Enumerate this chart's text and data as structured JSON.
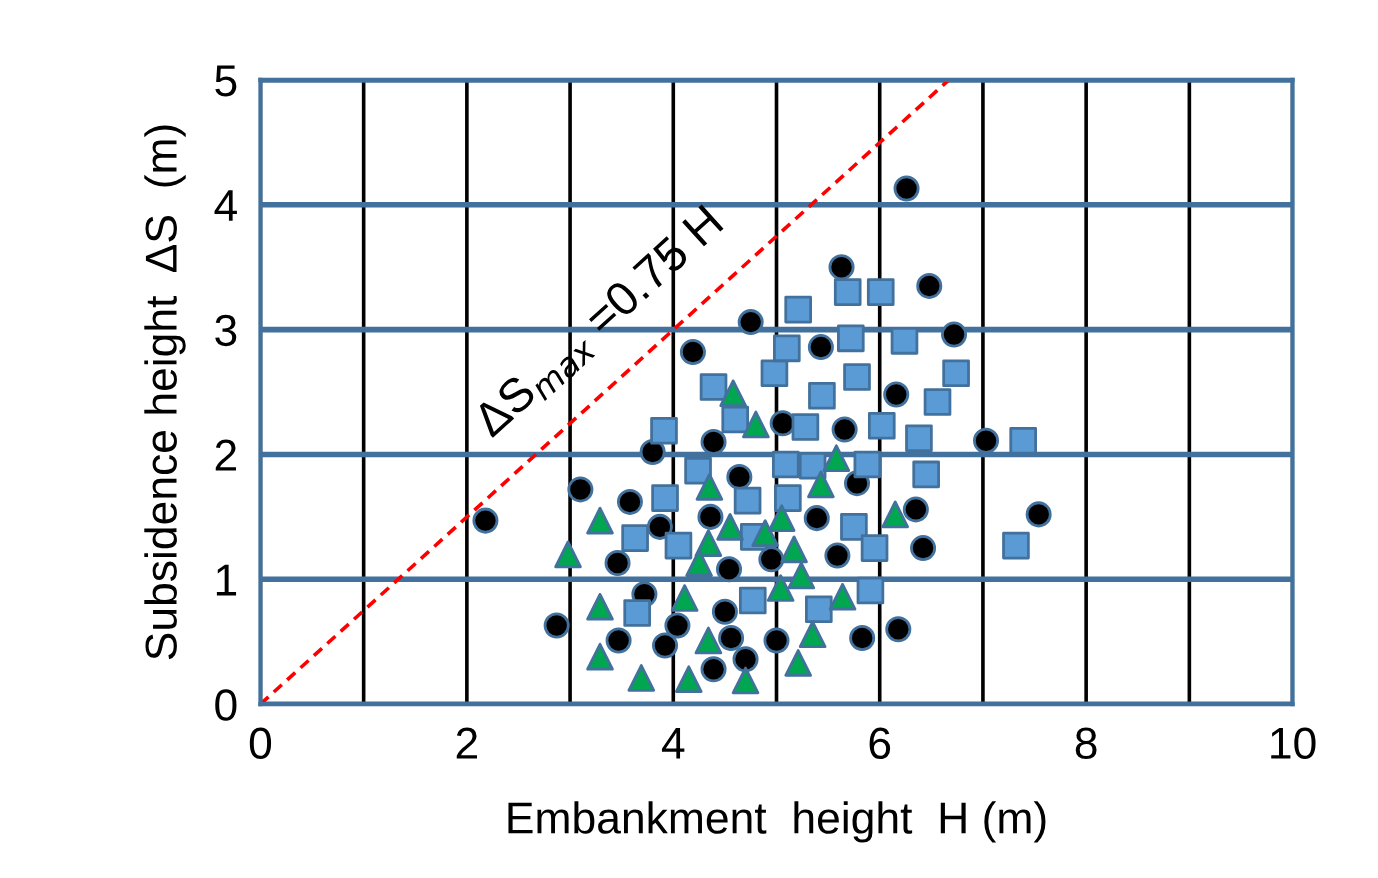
{
  "chart_data": {
    "type": "scatter",
    "xlabel": "Embankment  height  H (m)",
    "ylabel": "Subsidence height  ΔS  (m)",
    "xlim": [
      0,
      10
    ],
    "ylim": [
      0,
      5
    ],
    "xticks": [
      0,
      {
        "value": 1,
        "label": null
      },
      2,
      {
        "value": 3,
        "label": null
      },
      4,
      {
        "value": 5,
        "label": null
      },
      6,
      {
        "value": 7,
        "label": null
      },
      8,
      {
        "value": 9,
        "label": null
      },
      10
    ],
    "yticks": [
      0,
      1,
      2,
      3,
      4,
      5
    ],
    "grid": true,
    "annotations": [
      "ΔS$_{max}$ =0.75 H"
    ],
    "series": [
      {
        "type": "line",
        "color": "#ff0000",
        "line_style": "dashed",
        "marker": "none",
        "x": [
          0,
          6.67
        ],
        "values": [
          0,
          5
        ]
      },
      {
        "color": "#000000",
        "marker": "circle",
        "x": [
          2.18,
          2.87,
          3.1,
          3.46,
          3.47,
          3.58,
          3.72,
          3.8,
          3.87,
          3.92,
          4.04,
          4.19,
          4.36,
          4.39,
          4.39,
          4.5,
          4.54,
          4.56,
          4.64,
          4.7,
          4.75,
          4.95,
          5.0,
          5.06,
          5.39,
          5.43,
          5.59,
          5.63,
          5.66,
          5.78,
          5.83,
          6.16,
          6.18,
          6.26,
          6.35,
          6.42,
          6.48,
          6.72,
          7.03,
          7.54
        ],
        "values": [
          1.47,
          0.63,
          1.72,
          1.13,
          0.51,
          1.62,
          0.88,
          2.02,
          1.42,
          0.47,
          0.63,
          2.82,
          1.5,
          2.1,
          0.28,
          0.74,
          1.08,
          0.53,
          1.82,
          0.36,
          3.06,
          1.16,
          0.51,
          2.25,
          1.49,
          2.86,
          1.19,
          3.5,
          2.2,
          1.77,
          0.53,
          2.48,
          0.6,
          4.13,
          1.56,
          1.25,
          3.35,
          2.96,
          2.11,
          1.52
        ]
      },
      {
        "color": "#5b9bd5",
        "marker": "square",
        "x": [
          3.91,
          4.24,
          3.92,
          3.63,
          4.05,
          3.65,
          4.39,
          4.6,
          4.72,
          4.78,
          4.77,
          4.98,
          5.1,
          5.21,
          5.09,
          5.11,
          5.28,
          5.35,
          5.44,
          5.41,
          5.69,
          6.01,
          5.72,
          5.78,
          5.75,
          5.88,
          5.95,
          5.91,
          6.02,
          6.24,
          6.38,
          6.45,
          6.56,
          6.74,
          7.39,
          7.32
        ],
        "values": [
          2.19,
          1.87,
          1.65,
          1.33,
          1.27,
          0.73,
          2.54,
          2.28,
          1.63,
          1.34,
          0.83,
          2.65,
          2.85,
          3.16,
          1.92,
          1.65,
          2.22,
          1.91,
          2.47,
          0.76,
          3.3,
          3.3,
          2.93,
          2.62,
          1.42,
          1.92,
          1.25,
          0.91,
          2.23,
          2.91,
          2.13,
          1.84,
          2.42,
          2.65,
          2.11,
          1.27
        ]
      },
      {
        "color": "#00a650",
        "marker": "triangle",
        "x": [
          2.98,
          3.29,
          3.29,
          3.29,
          3.69,
          4.11,
          4.15,
          4.35,
          4.34,
          4.25,
          4.34,
          4.58,
          4.55,
          4.8,
          4.7,
          4.89,
          5.05,
          5.17,
          5.24,
          5.04,
          5.21,
          5.43,
          5.58,
          5.35,
          5.64,
          6.15
        ],
        "values": [
          1.2,
          1.47,
          0.78,
          0.38,
          0.21,
          0.85,
          0.2,
          1.74,
          1.29,
          1.13,
          0.51,
          2.49,
          1.42,
          2.24,
          0.19,
          1.37,
          1.49,
          1.24,
          1.03,
          0.93,
          0.33,
          1.76,
          1.97,
          0.56,
          0.86,
          1.52
        ]
      }
    ]
  }
}
